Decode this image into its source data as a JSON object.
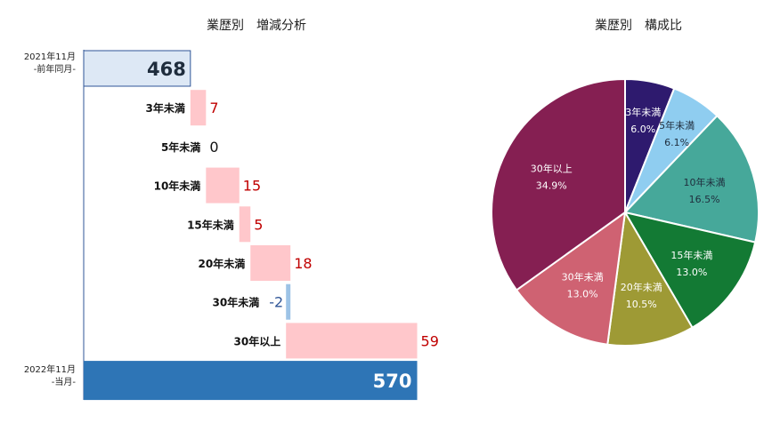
{
  "colors": {
    "start_bar": "#dde8f5",
    "start_bar_border": "#2f5597",
    "end_bar": "#2e75b6",
    "increase_bar": "#ffc7cb",
    "decrease_bar": "#9dc3e6",
    "increase_label": "#c00000",
    "decrease_label": "#2f5597",
    "axis_line": "#2f5597"
  },
  "chart_data": [
    {
      "type": "waterfall",
      "title": "業歴別　増減分析",
      "start": {
        "label_line1": "2021年11月",
        "label_line2": "-前年同月-",
        "value": 468
      },
      "steps": [
        {
          "label": "3年未満",
          "value": 7,
          "display": "7"
        },
        {
          "label": "5年未満",
          "value": 0,
          "display": "0"
        },
        {
          "label": "10年未満",
          "value": 15,
          "display": "15"
        },
        {
          "label": "15年未満",
          "value": 5,
          "display": "5"
        },
        {
          "label": "20年未満",
          "value": 18,
          "display": "18"
        },
        {
          "label": "30年未満",
          "value": -2,
          "display": "-2"
        },
        {
          "label": "30年以上",
          "value": 59,
          "display": "59"
        }
      ],
      "end": {
        "label_line1": "2022年11月",
        "label_line2": "-当月-",
        "value": 570
      },
      "axis_min": 420,
      "axis_max": 575
    },
    {
      "type": "pie",
      "title": "業歴別　構成比",
      "slices": [
        {
          "label": "3年未満",
          "value": 6.0,
          "pct": "6.0%",
          "color": "#2e1a6e",
          "text_color": "#ffffff"
        },
        {
          "label": "5年未満",
          "value": 6.1,
          "pct": "6.1%",
          "color": "#8fcdf0",
          "text_color": "#1f2d3d"
        },
        {
          "label": "10年未満",
          "value": 16.5,
          "pct": "16.5%",
          "color": "#46a89a",
          "text_color": "#1f2d3d"
        },
        {
          "label": "15年未満",
          "value": 13.0,
          "pct": "13.0%",
          "color": "#137a34",
          "text_color": "#ffffff"
        },
        {
          "label": "20年未満",
          "value": 10.5,
          "pct": "10.5%",
          "color": "#9e9a35",
          "text_color": "#ffffff"
        },
        {
          "label": "30年未満",
          "value": 13.0,
          "pct": "13.0%",
          "color": "#cf6272",
          "text_color": "#ffffff"
        },
        {
          "label": "30年以上",
          "value": 34.9,
          "pct": "34.9%",
          "color": "#851f52",
          "text_color": "#ffffff"
        }
      ]
    }
  ]
}
